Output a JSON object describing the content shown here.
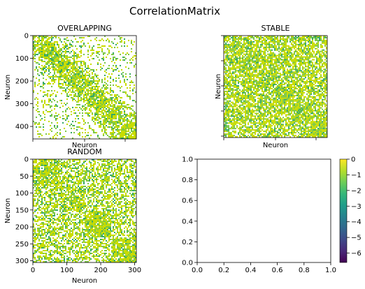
{
  "figure": {
    "title": "CorrelationMatrix"
  },
  "chart_data": [
    {
      "type": "heatmap",
      "title": "OVERLAPPING",
      "xlabel": "Neuron",
      "ylabel": "Neuron",
      "size": 455,
      "xticks": [],
      "yticks": [
        "0",
        "100",
        "200",
        "300",
        "400"
      ],
      "ytick_values": [
        0,
        100,
        200,
        300,
        400
      ],
      "structure": "banded clusters"
    },
    {
      "type": "heatmap",
      "title": "STABLE",
      "xlabel": "Neuron",
      "ylabel": "Neuron",
      "xticks": [],
      "yticks": [],
      "structure": "dense"
    },
    {
      "type": "heatmap",
      "title": "RANDOM",
      "xlabel": "Neuron",
      "ylabel": "Neuron",
      "size": 305,
      "xticks": [
        "0",
        "100",
        "200",
        "300"
      ],
      "xtick_values": [
        0,
        100,
        200,
        300
      ],
      "yticks": [
        "0",
        "50",
        "100",
        "150",
        "200",
        "250",
        "300"
      ],
      "ytick_values": [
        0,
        50,
        100,
        150,
        200,
        250,
        300
      ],
      "structure": "block clusters"
    },
    {
      "type": "line",
      "series": [],
      "xlim": [
        0,
        1
      ],
      "ylim": [
        0,
        1
      ],
      "xticks": [
        "0.0",
        "0.2",
        "0.4",
        "0.6",
        "0.8",
        "1.0"
      ],
      "yticks": [
        "0.0",
        "0.2",
        "0.4",
        "0.6",
        "0.8",
        "1.0"
      ]
    }
  ],
  "colorbar": {
    "colormap": "viridis",
    "min": -6.6,
    "max": 0,
    "ticks": [
      "0",
      "−1",
      "−2",
      "−3",
      "−4",
      "−5",
      "−6"
    ],
    "tick_values": [
      0,
      -1,
      -2,
      -3,
      -4,
      -5,
      -6
    ],
    "stops": [
      "#440154",
      "#482878",
      "#3e4989",
      "#31688e",
      "#26828e",
      "#1f9e89",
      "#35b779",
      "#6ece58",
      "#b5de2b",
      "#fde725"
    ]
  },
  "colors": {
    "high": "#c8dc00",
    "mid": "#7cc844",
    "low": "#37aa64"
  }
}
